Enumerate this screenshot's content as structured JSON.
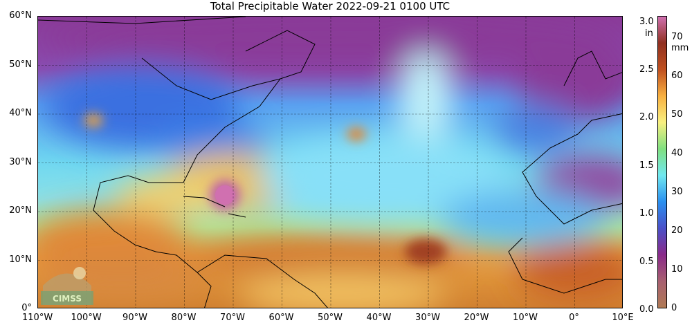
{
  "title": "Total Precipitable Water  2022-09-21 0100 UTC",
  "map": {
    "lat_labels": [
      "60°N",
      "50°N",
      "40°N",
      "30°N",
      "20°N",
      "10°N",
      "0°"
    ],
    "lon_labels": [
      "110°W",
      "100°W",
      "90°W",
      "80°W",
      "70°W",
      "60°W",
      "50°W",
      "40°W",
      "30°W",
      "20°W",
      "10°W",
      "0°",
      "10°E"
    ],
    "logo_text": "CIMSS"
  },
  "colorbar": {
    "in_unit": "in",
    "mm_unit": "mm",
    "in_ticks": [
      "3.0",
      "2.5",
      "2.0",
      "1.5",
      "1.0",
      "0.5",
      "0.0"
    ],
    "mm_ticks": [
      "70",
      "60",
      "50",
      "40",
      "30",
      "20",
      "10",
      "0"
    ],
    "colors": [
      "#b07a55",
      "#a86070",
      "#8a2a8a",
      "#4a50c8",
      "#2a90f0",
      "#70e8f0",
      "#80e080",
      "#f8f080",
      "#f8b040",
      "#c05020",
      "#903020",
      "#d070b0"
    ]
  }
}
